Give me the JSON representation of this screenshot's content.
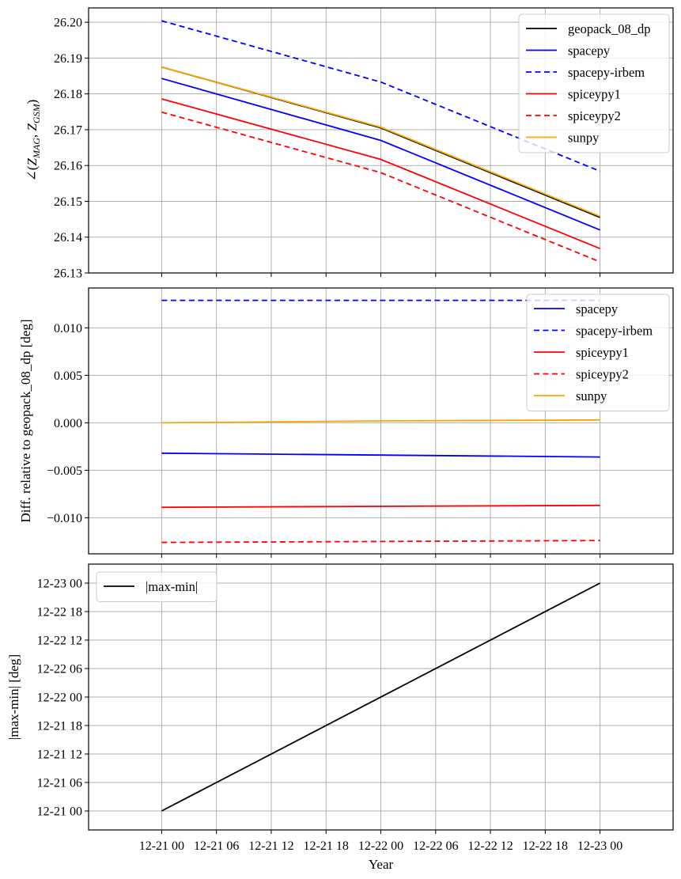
{
  "chart_data": [
    {
      "type": "line",
      "ylabel": "∠(Z_MAG, Z_GSM)",
      "ylim": [
        26.13,
        26.204
      ],
      "yticks": [
        "26.13",
        "26.14",
        "26.15",
        "26.16",
        "26.17",
        "26.18",
        "26.19",
        "26.20"
      ],
      "grid": true,
      "legend_position": "top-right",
      "x": [
        "2020-12-21 00:00",
        "2020-12-22 00:00",
        "2020-12-23 00:00"
      ],
      "series": [
        {
          "name": "geopack_08_dp",
          "color": "#000000",
          "style": "solid",
          "values": [
            26.1875,
            26.1705,
            26.1455
          ]
        },
        {
          "name": "spacepy",
          "color": "#0000ff",
          "style": "solid",
          "values": [
            26.1843,
            26.167,
            26.142
          ]
        },
        {
          "name": "spacepy-irbem",
          "color": "#0000ff",
          "style": "dashed",
          "values": [
            26.2004,
            26.1833,
            26.1584
          ]
        },
        {
          "name": "spiceypy1",
          "color": "#ff0000",
          "style": "solid",
          "values": [
            26.1786,
            26.1617,
            26.1368
          ]
        },
        {
          "name": "spiceypy2",
          "color": "#ff0000",
          "style": "dashed",
          "values": [
            26.1749,
            26.158,
            26.1331
          ]
        },
        {
          "name": "sunpy",
          "color": "#ffa500",
          "style": "solid",
          "values": [
            26.1875,
            26.1707,
            26.1458
          ]
        }
      ]
    },
    {
      "type": "line",
      "ylabel": "Diff. relative to geopack_08_dp [deg]",
      "ylim": [
        -0.0138,
        0.0142
      ],
      "yticks": [
        "−0.010",
        "−0.005",
        "0.000",
        "0.005",
        "0.010"
      ],
      "grid": true,
      "legend_position": "top-right",
      "x": [
        "2020-12-21 00:00",
        "2020-12-22 00:00",
        "2020-12-23 00:00"
      ],
      "series": [
        {
          "name": "spacepy",
          "color": "#0000ff",
          "style": "solid",
          "values": [
            -0.0032,
            -0.0034,
            -0.0036
          ]
        },
        {
          "name": "spacepy-irbem",
          "color": "#0000ff",
          "style": "dashed",
          "values": [
            0.0129,
            0.0129,
            0.0129
          ]
        },
        {
          "name": "spiceypy1",
          "color": "#ff0000",
          "style": "solid",
          "values": [
            -0.0089,
            -0.0088,
            -0.0087
          ]
        },
        {
          "name": "spiceypy2",
          "color": "#ff0000",
          "style": "dashed",
          "values": [
            -0.0126,
            -0.0125,
            -0.0124
          ]
        },
        {
          "name": "sunpy",
          "color": "#ffa500",
          "style": "solid",
          "values": [
            0.0,
            0.0002,
            0.0003
          ]
        }
      ]
    },
    {
      "type": "line",
      "ylabel": "|max-min| [deg]",
      "xlabel": "Year",
      "ylim": [
        "2020-12-20 20:00",
        "2020-12-23 04:00"
      ],
      "yticks": [
        "12-21 00",
        "12-21 06",
        "12-21 12",
        "12-21 18",
        "12-22 00",
        "12-22 06",
        "12-22 12",
        "12-22 18",
        "12-23 00"
      ],
      "xlim": [
        "2020-12-20 16:00",
        "2020-12-23 08:00"
      ],
      "xticks": [
        "12-21 00",
        "12-21 06",
        "12-21 12",
        "12-21 18",
        "12-22 00",
        "12-22 06",
        "12-22 12",
        "12-22 18",
        "12-23 00"
      ],
      "grid": true,
      "legend_position": "top-left",
      "x": [
        "2020-12-21 00:00",
        "2020-12-23 00:00"
      ],
      "series": [
        {
          "name": "|max-min|",
          "color": "#000000",
          "style": "solid",
          "values": [
            "2020-12-21 00:00",
            "2020-12-23 00:00"
          ]
        }
      ]
    }
  ]
}
